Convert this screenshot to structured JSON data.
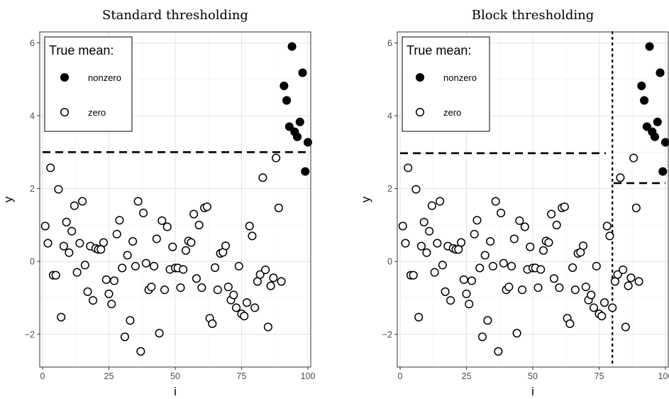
{
  "chart_data": [
    {
      "type": "scatter",
      "title": "Standard thresholding",
      "xlabel": "i",
      "ylabel": "y",
      "xlim": [
        0,
        100
      ],
      "ylim": [
        -2.9,
        6.3
      ],
      "xticks": [
        0,
        25,
        50,
        75,
        100
      ],
      "yticks": [
        -2,
        0,
        2,
        4,
        6
      ],
      "grid": true,
      "legend": {
        "title": "True mean:",
        "position": "top-left",
        "entries": [
          {
            "label": "nonzero",
            "marker": "filled-circle"
          },
          {
            "label": "zero",
            "marker": "open-circle"
          }
        ]
      },
      "thresholds": [
        {
          "style": "dashed",
          "y": 3.0,
          "x_from": 0,
          "x_to": 100
        }
      ],
      "series": [
        {
          "name": "zero",
          "marker": "open-circle",
          "points": [
            [
              1,
              0.97
            ],
            [
              2,
              0.5
            ],
            [
              3,
              2.57
            ],
            [
              4,
              -0.38
            ],
            [
              5,
              -0.38
            ],
            [
              6,
              1.98
            ],
            [
              7,
              -1.53
            ],
            [
              8,
              0.42
            ],
            [
              9,
              1.08
            ],
            [
              10,
              0.24
            ],
            [
              11,
              0.83
            ],
            [
              12,
              1.53
            ],
            [
              13,
              -0.3
            ],
            [
              14,
              0.5
            ],
            [
              15,
              1.65
            ],
            [
              16,
              -0.1
            ],
            [
              17,
              -0.83
            ],
            [
              18,
              0.42
            ],
            [
              19,
              -1.07
            ],
            [
              20,
              0.36
            ],
            [
              21,
              0.33
            ],
            [
              22,
              0.33
            ],
            [
              23,
              0.52
            ],
            [
              24,
              -0.5
            ],
            [
              25,
              -0.89
            ],
            [
              26,
              -1.17
            ],
            [
              27,
              -0.53
            ],
            [
              28,
              0.75
            ],
            [
              29,
              1.13
            ],
            [
              30,
              -0.18
            ],
            [
              31,
              -2.07
            ],
            [
              32,
              0.17
            ],
            [
              33,
              -1.62
            ],
            [
              34,
              0.55
            ],
            [
              35,
              -0.13
            ],
            [
              36,
              1.65
            ],
            [
              37,
              -2.47
            ],
            [
              38,
              1.33
            ],
            [
              39,
              -0.05
            ],
            [
              40,
              -0.78
            ],
            [
              41,
              -0.7
            ],
            [
              42,
              -0.13
            ],
            [
              43,
              0.62
            ],
            [
              44,
              -1.97
            ],
            [
              45,
              1.12
            ],
            [
              46,
              -0.78
            ],
            [
              47,
              0.95
            ],
            [
              48,
              -0.22
            ],
            [
              49,
              0.4
            ],
            [
              50,
              -0.18
            ],
            [
              51,
              -0.18
            ],
            [
              52,
              -0.72
            ],
            [
              53,
              -0.22
            ],
            [
              54,
              0.3
            ],
            [
              55,
              0.56
            ],
            [
              56,
              0.52
            ],
            [
              57,
              1.3
            ],
            [
              58,
              -0.47
            ],
            [
              59,
              1.0
            ],
            [
              60,
              -0.72
            ],
            [
              61,
              1.47
            ],
            [
              62,
              1.5
            ],
            [
              63,
              -1.56
            ],
            [
              64,
              -1.71
            ],
            [
              65,
              -0.17
            ],
            [
              66,
              -0.78
            ],
            [
              67,
              0.22
            ],
            [
              68,
              0.25
            ],
            [
              69,
              0.43
            ],
            [
              70,
              -0.7
            ],
            [
              71,
              -1.06
            ],
            [
              72,
              -0.92
            ],
            [
              73,
              -1.27
            ],
            [
              74,
              -0.13
            ],
            [
              75,
              -1.44
            ],
            [
              76,
              -1.5
            ],
            [
              77,
              -1.13
            ],
            [
              78,
              0.97
            ],
            [
              79,
              0.7
            ],
            [
              80,
              -1.27
            ],
            [
              81,
              -0.55
            ],
            [
              82,
              -0.36
            ],
            [
              83,
              2.3
            ],
            [
              84,
              -0.23
            ],
            [
              85,
              -1.8
            ],
            [
              86,
              -0.67
            ],
            [
              87,
              -0.45
            ],
            [
              88,
              2.84
            ],
            [
              89,
              1.47
            ],
            [
              90,
              -0.55
            ]
          ]
        },
        {
          "name": "nonzero",
          "marker": "filled-circle",
          "points": [
            [
              91,
              4.82
            ],
            [
              92,
              4.42
            ],
            [
              93,
              3.7
            ],
            [
              94,
              5.9
            ],
            [
              95,
              3.56
            ],
            [
              96,
              3.42
            ],
            [
              97,
              3.83
            ],
            [
              98,
              5.18
            ],
            [
              99,
              2.47
            ],
            [
              100,
              3.27
            ]
          ]
        }
      ]
    },
    {
      "type": "scatter",
      "title": "Block thresholding",
      "xlabel": "i",
      "ylabel": "y",
      "xlim": [
        0,
        100
      ],
      "ylim": [
        -2.9,
        6.3
      ],
      "xticks": [
        0,
        25,
        50,
        75,
        100
      ],
      "yticks": [
        -2,
        0,
        2,
        4,
        6
      ],
      "grid": true,
      "legend": {
        "title": "True mean:",
        "position": "top-left",
        "entries": [
          {
            "label": "nonzero",
            "marker": "filled-circle"
          },
          {
            "label": "zero",
            "marker": "open-circle"
          }
        ]
      },
      "thresholds": [
        {
          "style": "dashed",
          "y": 2.97,
          "x_from": 0,
          "x_to": 77.5
        },
        {
          "style": "dashed",
          "y": 2.15,
          "x_from": 80.5,
          "x_to": 100
        }
      ],
      "block_boundary": {
        "style": "dotted",
        "x": 80
      },
      "series": [
        {
          "name": "zero",
          "marker": "open-circle",
          "points": [
            [
              1,
              0.97
            ],
            [
              2,
              0.5
            ],
            [
              3,
              2.57
            ],
            [
              4,
              -0.38
            ],
            [
              5,
              -0.38
            ],
            [
              6,
              1.98
            ],
            [
              7,
              -1.53
            ],
            [
              8,
              0.42
            ],
            [
              9,
              1.08
            ],
            [
              10,
              0.24
            ],
            [
              11,
              0.83
            ],
            [
              12,
              1.53
            ],
            [
              13,
              -0.3
            ],
            [
              14,
              0.5
            ],
            [
              15,
              1.65
            ],
            [
              16,
              -0.1
            ],
            [
              17,
              -0.83
            ],
            [
              18,
              0.42
            ],
            [
              19,
              -1.07
            ],
            [
              20,
              0.36
            ],
            [
              21,
              0.33
            ],
            [
              22,
              0.33
            ],
            [
              23,
              0.52
            ],
            [
              24,
              -0.5
            ],
            [
              25,
              -0.89
            ],
            [
              26,
              -1.17
            ],
            [
              27,
              -0.53
            ],
            [
              28,
              0.75
            ],
            [
              29,
              1.13
            ],
            [
              30,
              -0.18
            ],
            [
              31,
              -2.07
            ],
            [
              32,
              0.17
            ],
            [
              33,
              -1.62
            ],
            [
              34,
              0.55
            ],
            [
              35,
              -0.13
            ],
            [
              36,
              1.65
            ],
            [
              37,
              -2.47
            ],
            [
              38,
              1.33
            ],
            [
              39,
              -0.05
            ],
            [
              40,
              -0.78
            ],
            [
              41,
              -0.7
            ],
            [
              42,
              -0.13
            ],
            [
              43,
              0.62
            ],
            [
              44,
              -1.97
            ],
            [
              45,
              1.12
            ],
            [
              46,
              -0.78
            ],
            [
              47,
              0.95
            ],
            [
              48,
              -0.22
            ],
            [
              49,
              0.4
            ],
            [
              50,
              -0.18
            ],
            [
              51,
              -0.18
            ],
            [
              52,
              -0.72
            ],
            [
              53,
              -0.22
            ],
            [
              54,
              0.3
            ],
            [
              55,
              0.56
            ],
            [
              56,
              0.52
            ],
            [
              57,
              1.3
            ],
            [
              58,
              -0.47
            ],
            [
              59,
              1.0
            ],
            [
              60,
              -0.72
            ],
            [
              61,
              1.47
            ],
            [
              62,
              1.5
            ],
            [
              63,
              -1.56
            ],
            [
              64,
              -1.71
            ],
            [
              65,
              -0.17
            ],
            [
              66,
              -0.78
            ],
            [
              67,
              0.22
            ],
            [
              68,
              0.25
            ],
            [
              69,
              0.43
            ],
            [
              70,
              -0.7
            ],
            [
              71,
              -1.06
            ],
            [
              72,
              -0.92
            ],
            [
              73,
              -1.27
            ],
            [
              74,
              -0.13
            ],
            [
              75,
              -1.44
            ],
            [
              76,
              -1.5
            ],
            [
              77,
              -1.13
            ],
            [
              78,
              0.97
            ],
            [
              79,
              0.7
            ],
            [
              80,
              -1.27
            ],
            [
              81,
              -0.55
            ],
            [
              82,
              -0.36
            ],
            [
              83,
              2.3
            ],
            [
              84,
              -0.23
            ],
            [
              85,
              -1.8
            ],
            [
              86,
              -0.67
            ],
            [
              87,
              -0.45
            ],
            [
              88,
              2.84
            ],
            [
              89,
              1.47
            ],
            [
              90,
              -0.55
            ]
          ]
        },
        {
          "name": "nonzero",
          "marker": "filled-circle",
          "points": [
            [
              91,
              4.82
            ],
            [
              92,
              4.42
            ],
            [
              93,
              3.7
            ],
            [
              94,
              5.9
            ],
            [
              95,
              3.56
            ],
            [
              96,
              3.42
            ],
            [
              97,
              3.83
            ],
            [
              98,
              5.18
            ],
            [
              99,
              2.47
            ],
            [
              100,
              3.27
            ]
          ]
        }
      ]
    }
  ]
}
